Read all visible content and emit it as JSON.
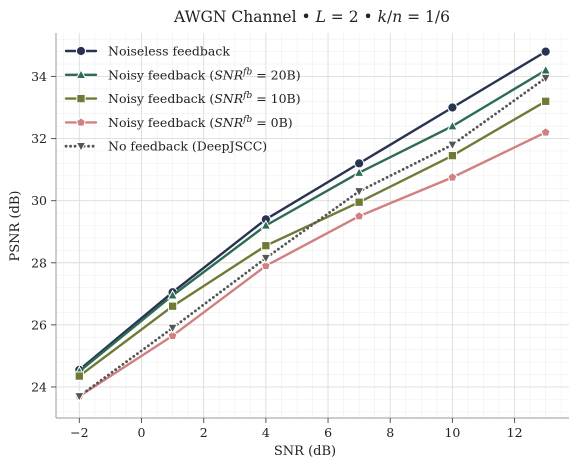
{
  "chart_data": {
    "type": "line",
    "title": "AWGN Channel • L = 2 • k/n = 1/6",
    "xlabel": "SNR (dB)",
    "ylabel": "PSNR (dB)",
    "xlim": [
      -2.75,
      13.75
    ],
    "ylim": [
      23.0,
      35.4
    ],
    "xticks": [
      -2,
      0,
      2,
      4,
      6,
      8,
      10,
      12
    ],
    "yticks": [
      24,
      26,
      28,
      30,
      32,
      34
    ],
    "xtick_labels": [
      "−2",
      "0",
      "2",
      "4",
      "6",
      "8",
      "10",
      "12"
    ],
    "ytick_labels": [
      "24",
      "26",
      "28",
      "30",
      "32",
      "34"
    ],
    "x": [
      -2,
      1,
      4,
      7,
      10,
      13
    ],
    "grid": true,
    "legend_position": "top-left",
    "series": [
      {
        "name": "Noiseless feedback",
        "values": [
          24.55,
          27.05,
          29.4,
          31.2,
          33.0,
          34.8
        ],
        "color": "#283350",
        "marker": "circle",
        "line_style": "solid"
      },
      {
        "name": "Noisy feedback (SNRfb = 20B)",
        "values": [
          24.5,
          26.95,
          29.2,
          30.9,
          32.4,
          34.2
        ],
        "color": "#2d6b55",
        "marker": "triangle-up",
        "line_style": "solid"
      },
      {
        "name": "Noisy feedback (SNRfb = 10B)",
        "values": [
          24.35,
          26.6,
          28.55,
          29.95,
          31.45,
          33.2
        ],
        "color": "#6e7a35",
        "marker": "square",
        "line_style": "solid"
      },
      {
        "name": "Noisy feedback (SNRfb = 0B)",
        "values": [
          23.7,
          25.65,
          27.9,
          29.5,
          30.75,
          32.2
        ],
        "color": "#d08080",
        "marker": "pentagon",
        "line_style": "solid"
      },
      {
        "name": "No feedback (DeepJSCC)",
        "values": [
          23.7,
          25.9,
          28.15,
          30.3,
          31.8,
          33.95
        ],
        "color": "#555555",
        "marker": "triangle-down",
        "line_style": "dotted"
      }
    ]
  },
  "legend": {
    "entries": [
      {
        "prefix": "Noiseless feedback",
        "sup": "",
        "value": "",
        "suffix": ""
      },
      {
        "prefix": "Noisy feedback (",
        "sup": "fb",
        "value": " = 20B",
        "suffix": ")"
      },
      {
        "prefix": "Noisy feedback (",
        "sup": "fb",
        "value": " = 10B",
        "suffix": ")"
      },
      {
        "prefix": "Noisy feedback (",
        "sup": "fb",
        "value": " = 0B",
        "suffix": ")"
      },
      {
        "prefix": "No feedback (DeepJSCC)",
        "sup": "",
        "value": "",
        "suffix": ""
      }
    ],
    "snr_symbol": "SNR"
  },
  "title_parts": {
    "prefix": "AWGN Channel • ",
    "l_var": "L",
    "l_value": " = 2 • ",
    "k_var": "k",
    "slash": "/",
    "n_var": "n",
    "ratio_value": " = 1/6"
  }
}
